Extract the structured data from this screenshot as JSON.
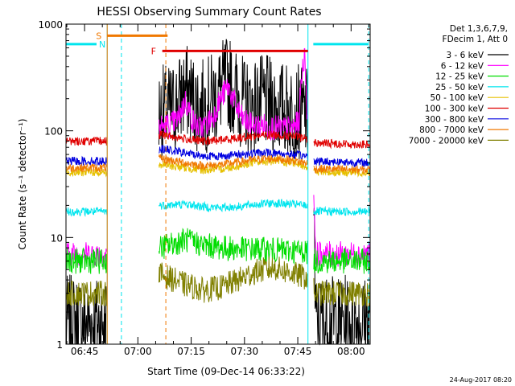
{
  "chart_data": {
    "type": "line",
    "title": "HESSI Observing Summary Count Rates",
    "xlabel": "Start Time (09-Dec-14 06:33:22)",
    "ylabel": "Count Rate (s⁻¹ detector⁻¹)",
    "yscale": "log",
    "ylim": [
      1,
      1000
    ],
    "xlim_minutes": [
      6.4,
      92.0
    ],
    "x_start_time": "06:33:22",
    "x_ticks": [
      "06:45",
      "07:00",
      "07:15",
      "07:30",
      "07:45",
      "08:00"
    ],
    "y_ticks": [
      "1",
      "10",
      "100",
      "1000"
    ],
    "info_lines": [
      "Det 1,3,6,7,9,",
      "FDecim 1, Att 0"
    ],
    "timestamp": "24-Aug-2017 08:20",
    "legend_position": "right",
    "gaps": [
      {
        "start": 18.0,
        "end": 32.5
      },
      {
        "start": 74.5,
        "end": 76.0
      }
    ],
    "markers": {
      "night": {
        "label": "N",
        "color": "#00e5ee",
        "bars": [
          [
            6.4,
            15.0
          ],
          [
            76.0,
            91.6
          ]
        ],
        "y": 650,
        "lines": [
          18.0,
          74.5
        ],
        "dashed": [
          22.0,
          91.6
        ]
      },
      "saa": {
        "label": "S",
        "color": "#f07800",
        "bar": [
          18.0,
          35.0
        ],
        "y": 780,
        "line": 18.0,
        "dashed": 34.5
      },
      "flare": {
        "label": "F",
        "color": "#e00000",
        "bar": [
          33.5,
          74.5
        ],
        "y": 560
      }
    },
    "series": [
      {
        "name": "3 - 6 keV",
        "color": "#000000",
        "x": [
          6.4,
          17.8,
          33.0,
          36,
          38,
          40,
          42,
          44,
          46,
          48,
          50,
          52,
          54,
          56,
          58,
          60,
          62,
          64,
          66,
          68,
          70,
          72,
          74.0,
          76.5,
          91.6
        ],
        "y": [
          1.6,
          1.6,
          150,
          155,
          185,
          240,
          195,
          165,
          175,
          200,
          245,
          290,
          225,
          185,
          165,
          175,
          190,
          175,
          165,
          160,
          155,
          150,
          145,
          1.6,
          1.6
        ]
      },
      {
        "name": "6 - 12 keV",
        "color": "#ff00ff",
        "x": [
          6.4,
          17.8,
          33.0,
          36,
          38,
          40,
          42,
          44,
          46,
          48,
          50,
          52,
          54,
          56,
          58,
          60,
          62,
          64,
          66,
          68,
          70,
          72,
          73.5,
          74.2,
          76.5,
          91.6
        ],
        "y": [
          7.0,
          7.0,
          110,
          115,
          130,
          190,
          125,
          105,
          115,
          140,
          200,
          260,
          175,
          130,
          115,
          110,
          112,
          108,
          106,
          105,
          106,
          120,
          520,
          150,
          7.0,
          7.0
        ]
      },
      {
        "name": "12 - 25 keV",
        "color": "#00dd00",
        "x": [
          6.4,
          17.8,
          33.0,
          40,
          45,
          50,
          55,
          60,
          65,
          70,
          74.0,
          76.5,
          91.6
        ],
        "y": [
          6.0,
          6.0,
          8.0,
          9.5,
          8.5,
          8.0,
          7.8,
          7.8,
          7.6,
          7.5,
          7.5,
          6.0,
          6.0
        ]
      },
      {
        "name": "25 - 50 keV",
        "color": "#00e5ee",
        "x": [
          6.4,
          17.8,
          33.0,
          40,
          45,
          50,
          55,
          60,
          65,
          70,
          74.0,
          76.5,
          91.6
        ],
        "y": [
          17.5,
          17.5,
          20,
          20.5,
          19.5,
          19,
          19.5,
          20.5,
          21,
          20.5,
          20,
          17.5,
          17.5
        ]
      },
      {
        "name": "50 - 100 keV",
        "color": "#e6c000",
        "x": [
          6.4,
          17.8,
          33.0,
          40,
          45,
          50,
          55,
          60,
          65,
          70,
          74.0,
          76.5,
          91.6
        ],
        "y": [
          41,
          41,
          48,
          45,
          43,
          44,
          47,
          51,
          52,
          50,
          47,
          41,
          41
        ]
      },
      {
        "name": "100 - 300 keV",
        "color": "#e00000",
        "x": [
          6.4,
          17.8,
          33.0,
          40,
          45,
          50,
          55,
          60,
          65,
          70,
          74.0,
          76.5,
          91.6
        ],
        "y": [
          80,
          80,
          92,
          84,
          80,
          82,
          86,
          90,
          92,
          89,
          85,
          77,
          74
        ]
      },
      {
        "name": "300 - 800 keV",
        "color": "#0000e0",
        "x": [
          6.4,
          17.8,
          33.0,
          40,
          45,
          50,
          55,
          60,
          65,
          70,
          74.0,
          76.5,
          91.6
        ],
        "y": [
          52,
          52,
          68,
          62,
          58,
          58,
          60,
          62,
          62,
          60,
          58,
          52,
          50
        ]
      },
      {
        "name": "800 - 7000 keV",
        "color": "#f07800",
        "x": [
          6.4,
          17.8,
          33.0,
          40,
          45,
          50,
          55,
          60,
          65,
          70,
          74.0,
          76.5,
          91.6
        ],
        "y": [
          45,
          45,
          55,
          50,
          47,
          48,
          51,
          54,
          55,
          53,
          50,
          44,
          43
        ]
      },
      {
        "name": "7000 - 20000 keV",
        "color": "#808000",
        "x": [
          6.4,
          17.8,
          33.0,
          40,
          45,
          50,
          55,
          60,
          65,
          70,
          74.0,
          76.5,
          91.6
        ],
        "y": [
          3.0,
          3.0,
          4.5,
          3.6,
          3.2,
          3.4,
          4.0,
          4.8,
          5.2,
          4.6,
          4.2,
          3.0,
          3.0
        ]
      }
    ]
  }
}
